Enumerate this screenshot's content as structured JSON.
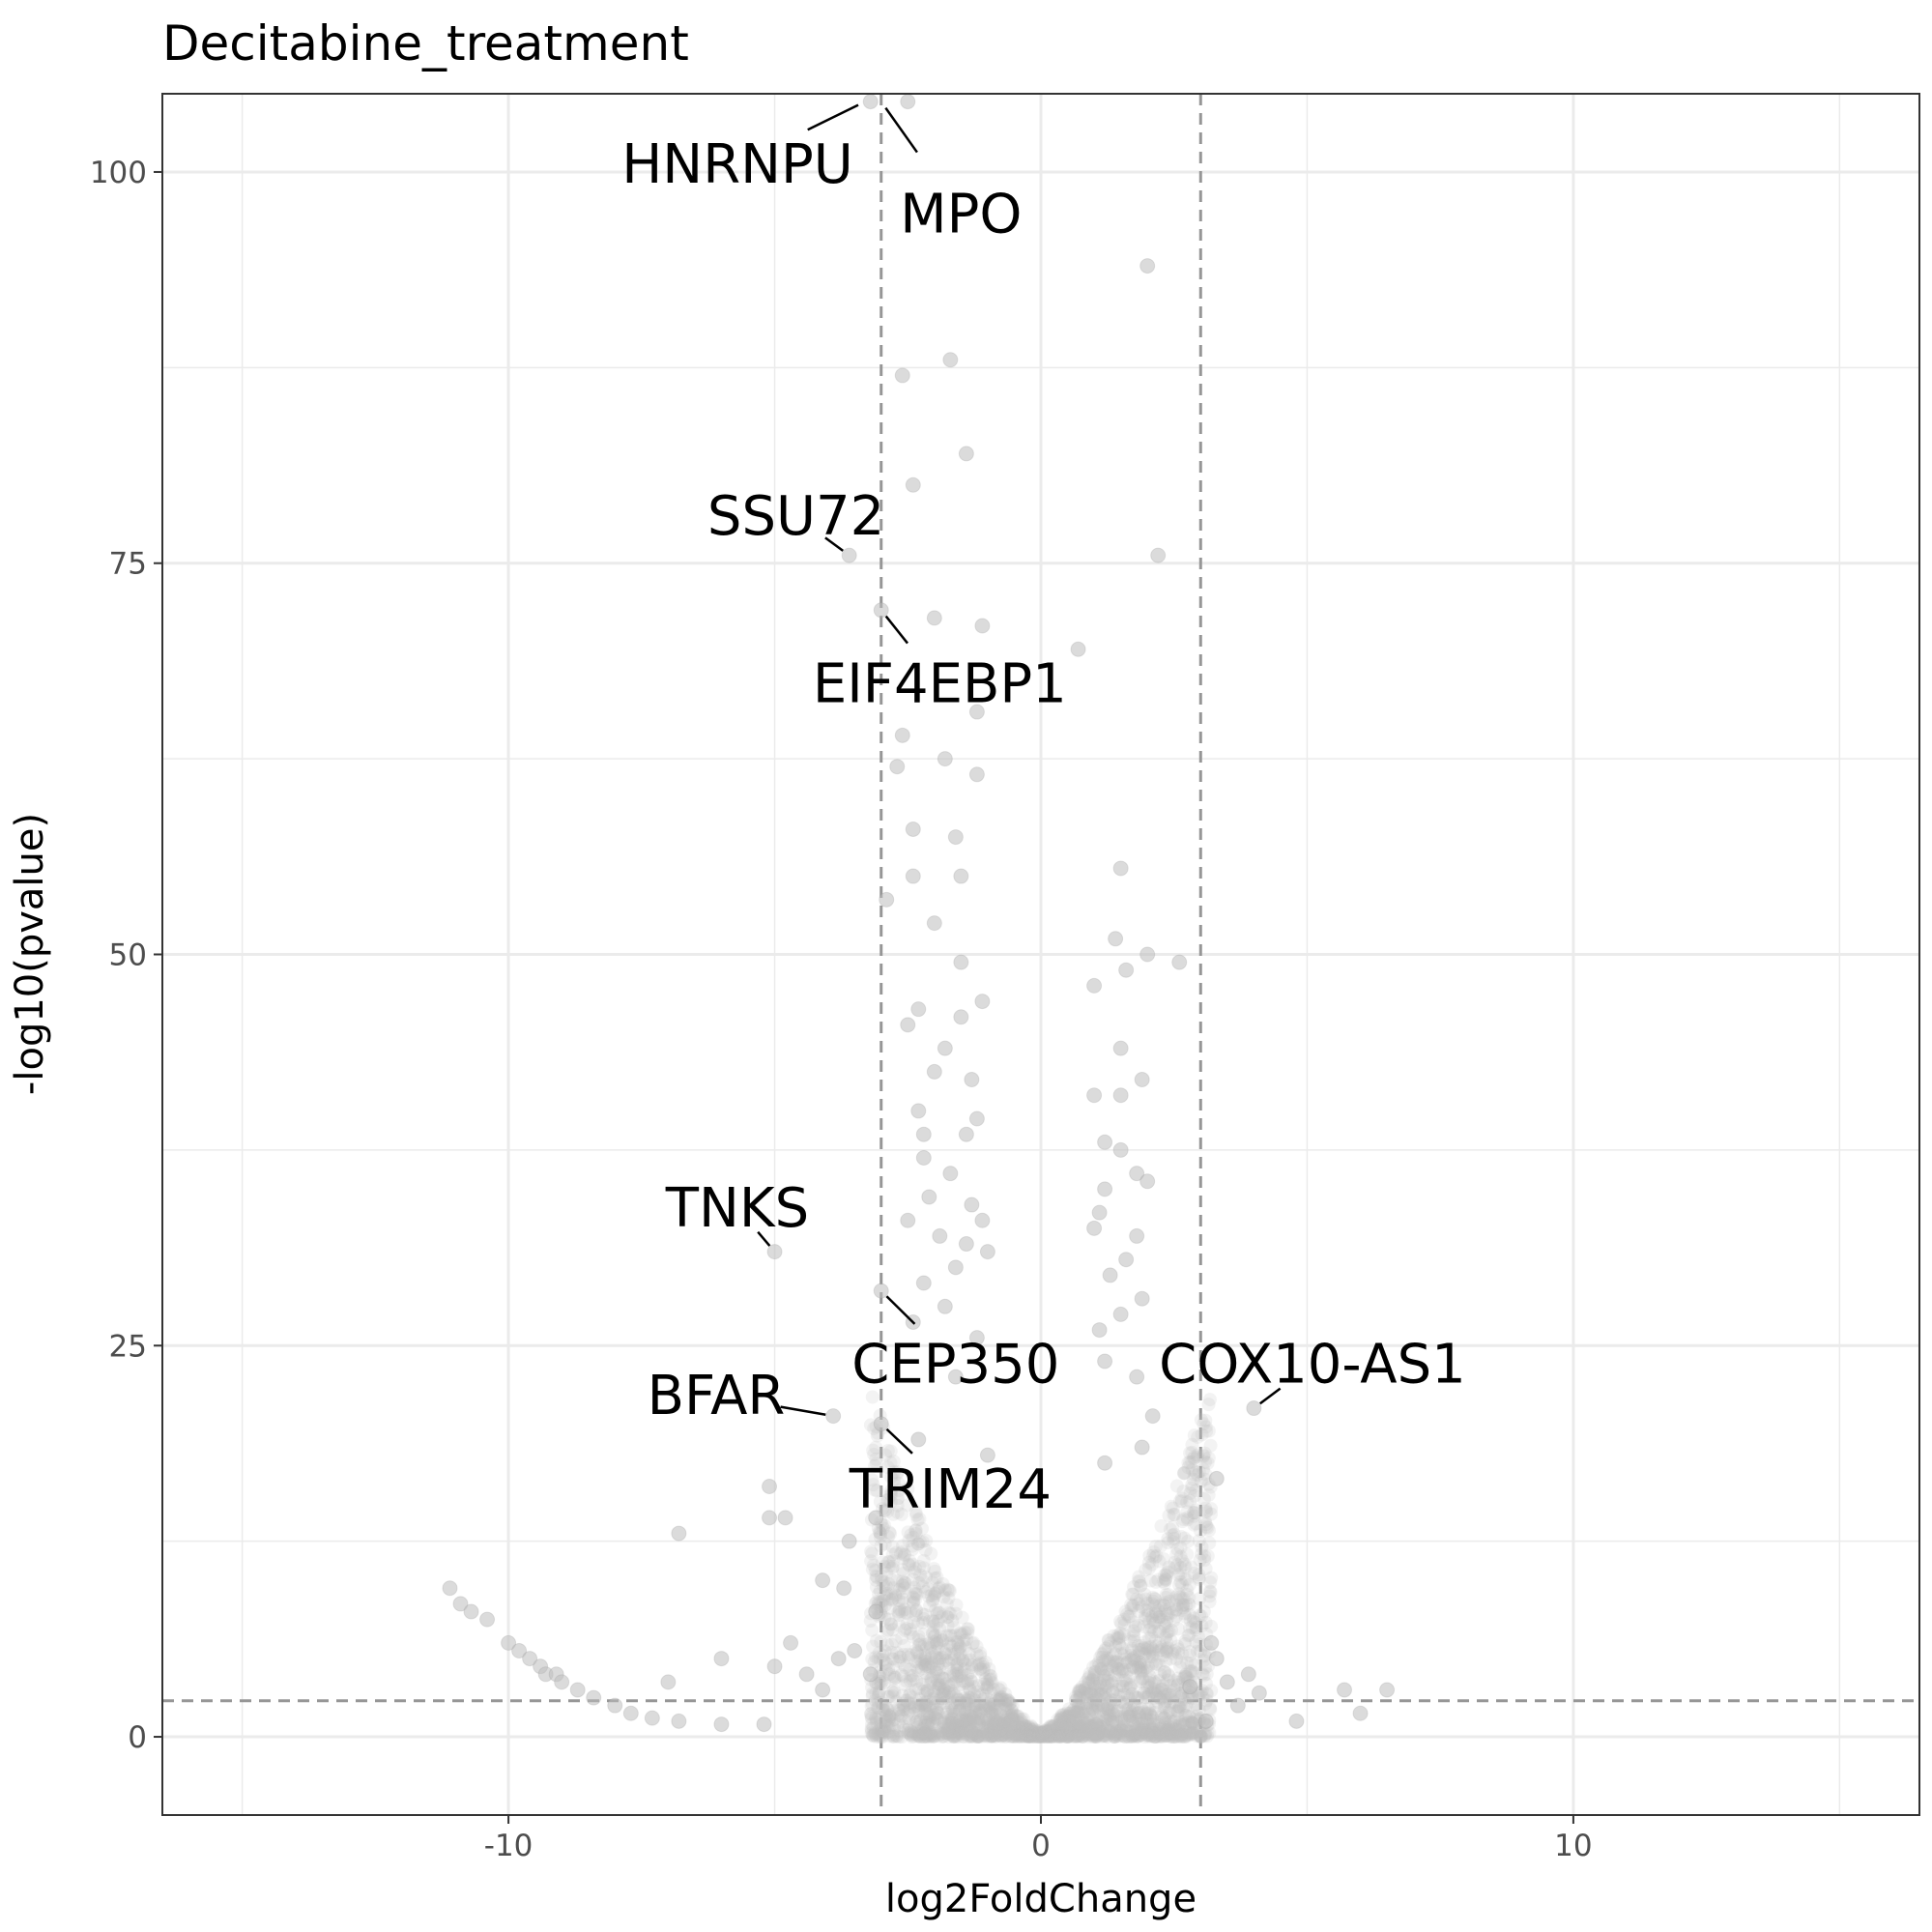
{
  "chart_data": {
    "type": "scatter",
    "title": "Decitabine_treatment",
    "xlabel": "log2FoldChange",
    "ylabel": "-log10(pvalue)",
    "xlim": [
      -16.5,
      16.5
    ],
    "ylim": [
      -5,
      105
    ],
    "x_ticks": [
      {
        "value": -10,
        "label": "-10"
      },
      {
        "value": 0,
        "label": "0"
      },
      {
        "value": 10,
        "label": "10"
      }
    ],
    "y_ticks": [
      {
        "value": 0,
        "label": "0"
      },
      {
        "value": 25,
        "label": "25"
      },
      {
        "value": 50,
        "label": "50"
      },
      {
        "value": 75,
        "label": "75"
      },
      {
        "value": 100,
        "label": "100"
      }
    ],
    "x_minor_gridlines": [
      -15,
      -5,
      5,
      15
    ],
    "y_minor_gridlines": [
      12.5,
      37.5,
      62.5,
      87.5
    ],
    "grid": true,
    "thresholds": {
      "log2FoldChange": [
        -3,
        3
      ],
      "neg_log10_pvalue": 2.3
    },
    "colors": {
      "point": "#bebebe",
      "threshold_line": "#969696",
      "grid": "#ebebeb",
      "border": "#333333",
      "label": "#000000"
    },
    "points": [
      {
        "x": -3.2,
        "y": 104.5
      },
      {
        "x": -2.5,
        "y": 104.5
      },
      {
        "x": 2.0,
        "y": 94
      },
      {
        "x": -1.7,
        "y": 88
      },
      {
        "x": -2.6,
        "y": 87
      },
      {
        "x": -1.4,
        "y": 82
      },
      {
        "x": -2.4,
        "y": 80
      },
      {
        "x": -3.6,
        "y": 75.5
      },
      {
        "x": 2.2,
        "y": 75.5
      },
      {
        "x": -3.0,
        "y": 72
      },
      {
        "x": -2.0,
        "y": 71.5
      },
      {
        "x": -1.1,
        "y": 71
      },
      {
        "x": 0.7,
        "y": 69.5
      },
      {
        "x": -1.2,
        "y": 65.5
      },
      {
        "x": -2.6,
        "y": 64
      },
      {
        "x": -1.8,
        "y": 62.5
      },
      {
        "x": -1.2,
        "y": 61.5
      },
      {
        "x": -2.7,
        "y": 62
      },
      {
        "x": -2.4,
        "y": 58
      },
      {
        "x": -1.6,
        "y": 57.5
      },
      {
        "x": -2.9,
        "y": 53.5
      },
      {
        "x": -2.4,
        "y": 55
      },
      {
        "x": -1.5,
        "y": 55
      },
      {
        "x": 1.5,
        "y": 55.5
      },
      {
        "x": -2.0,
        "y": 52
      },
      {
        "x": 1.4,
        "y": 51
      },
      {
        "x": 1.6,
        "y": 49
      },
      {
        "x": 2.0,
        "y": 50
      },
      {
        "x": 2.6,
        "y": 49.5
      },
      {
        "x": -1.5,
        "y": 49.5
      },
      {
        "x": 1.0,
        "y": 48
      },
      {
        "x": -1.1,
        "y": 47
      },
      {
        "x": -2.3,
        "y": 46.5
      },
      {
        "x": -1.5,
        "y": 46
      },
      {
        "x": -2.5,
        "y": 45.5
      },
      {
        "x": 1.5,
        "y": 44
      },
      {
        "x": -1.8,
        "y": 44
      },
      {
        "x": -2.0,
        "y": 42.5
      },
      {
        "x": 1.9,
        "y": 42
      },
      {
        "x": -1.3,
        "y": 42
      },
      {
        "x": 1.0,
        "y": 41
      },
      {
        "x": 1.5,
        "y": 41
      },
      {
        "x": -2.3,
        "y": 40
      },
      {
        "x": -1.2,
        "y": 39.5
      },
      {
        "x": -2.2,
        "y": 38.5
      },
      {
        "x": -1.4,
        "y": 38.5
      },
      {
        "x": 1.2,
        "y": 38
      },
      {
        "x": 1.5,
        "y": 37.5
      },
      {
        "x": -2.2,
        "y": 37
      },
      {
        "x": -1.7,
        "y": 36
      },
      {
        "x": 1.8,
        "y": 36
      },
      {
        "x": 1.2,
        "y": 35
      },
      {
        "x": 2.0,
        "y": 35.5
      },
      {
        "x": -2.1,
        "y": 34.5
      },
      {
        "x": -1.3,
        "y": 34
      },
      {
        "x": 1.1,
        "y": 33.5
      },
      {
        "x": -2.5,
        "y": 33
      },
      {
        "x": -1.1,
        "y": 33
      },
      {
        "x": 1.0,
        "y": 32.5
      },
      {
        "x": 1.8,
        "y": 32
      },
      {
        "x": -1.9,
        "y": 32
      },
      {
        "x": -1.4,
        "y": 31.5
      },
      {
        "x": -5.0,
        "y": 31
      },
      {
        "x": -1.0,
        "y": 31
      },
      {
        "x": 1.6,
        "y": 30.5
      },
      {
        "x": -1.6,
        "y": 30
      },
      {
        "x": 1.3,
        "y": 29.5
      },
      {
        "x": -2.2,
        "y": 29
      },
      {
        "x": -3.0,
        "y": 28.5
      },
      {
        "x": 1.9,
        "y": 28
      },
      {
        "x": -1.8,
        "y": 27.5
      },
      {
        "x": 1.5,
        "y": 27
      },
      {
        "x": -2.4,
        "y": 26.5
      },
      {
        "x": 1.1,
        "y": 26
      },
      {
        "x": -1.2,
        "y": 25.5
      },
      {
        "x": 1.2,
        "y": 24
      },
      {
        "x": 1.8,
        "y": 23
      },
      {
        "x": -1.6,
        "y": 23
      },
      {
        "x": 4.0,
        "y": 21
      },
      {
        "x": -3.9,
        "y": 20.5
      },
      {
        "x": -3.0,
        "y": 20
      },
      {
        "x": 2.1,
        "y": 20.5
      },
      {
        "x": -2.3,
        "y": 19
      },
      {
        "x": 1.9,
        "y": 18.5
      },
      {
        "x": -1.0,
        "y": 18
      },
      {
        "x": 1.2,
        "y": 17.5
      },
      {
        "x": 3.3,
        "y": 16.5
      },
      {
        "x": -5.1,
        "y": 16
      },
      {
        "x": -5.1,
        "y": 14
      },
      {
        "x": -4.8,
        "y": 14
      },
      {
        "x": -3.1,
        "y": 14
      },
      {
        "x": -3.6,
        "y": 12.5
      },
      {
        "x": -6.8,
        "y": 13
      },
      {
        "x": -4.1,
        "y": 10
      },
      {
        "x": -3.7,
        "y": 9.5
      },
      {
        "x": -3.1,
        "y": 8
      },
      {
        "x": -11.1,
        "y": 9.5
      },
      {
        "x": -10.9,
        "y": 8.5
      },
      {
        "x": -10.7,
        "y": 8
      },
      {
        "x": -10.4,
        "y": 7.5
      },
      {
        "x": -10.0,
        "y": 6
      },
      {
        "x": -9.8,
        "y": 5.5
      },
      {
        "x": -9.6,
        "y": 5
      },
      {
        "x": -9.4,
        "y": 4.5
      },
      {
        "x": -9.3,
        "y": 4
      },
      {
        "x": -9.1,
        "y": 4
      },
      {
        "x": -9.0,
        "y": 3.5
      },
      {
        "x": -8.7,
        "y": 3
      },
      {
        "x": -8.4,
        "y": 2.5
      },
      {
        "x": -8.0,
        "y": 2
      },
      {
        "x": -7.7,
        "y": 1.5
      },
      {
        "x": -7.3,
        "y": 1.2
      },
      {
        "x": -6.8,
        "y": 1
      },
      {
        "x": -6.0,
        "y": 0.8
      },
      {
        "x": -7.0,
        "y": 3.5
      },
      {
        "x": -6.0,
        "y": 5
      },
      {
        "x": -5.0,
        "y": 4.5
      },
      {
        "x": -4.7,
        "y": 6
      },
      {
        "x": -4.4,
        "y": 4
      },
      {
        "x": -4.1,
        "y": 3
      },
      {
        "x": -3.8,
        "y": 5
      },
      {
        "x": -3.5,
        "y": 5.5
      },
      {
        "x": -3.2,
        "y": 4
      },
      {
        "x": -5.2,
        "y": 0.8
      },
      {
        "x": 3.2,
        "y": 6
      },
      {
        "x": 3.3,
        "y": 5
      },
      {
        "x": 3.5,
        "y": 3.5
      },
      {
        "x": 3.9,
        "y": 4
      },
      {
        "x": 4.1,
        "y": 2.8
      },
      {
        "x": 3.7,
        "y": 2
      },
      {
        "x": 4.8,
        "y": 1
      },
      {
        "x": 5.7,
        "y": 3
      },
      {
        "x": 6.5,
        "y": 3
      },
      {
        "x": 6.0,
        "y": 1.5
      },
      {
        "x": 3.1,
        "y": 1
      },
      {
        "x": 2.8,
        "y": 3.2
      }
    ],
    "labels": [
      {
        "gene": "HNRNPU",
        "text_x": -5.7,
        "text_y": 100.5,
        "point_x": -3.3,
        "point_y": 104.5
      },
      {
        "gene": "MPO",
        "text_x": -1.5,
        "text_y": 97.3,
        "point_x": -3.0,
        "point_y": 104.5
      },
      {
        "gene": "SSU72",
        "text_x": -4.6,
        "text_y": 78,
        "point_x": -3.6,
        "point_y": 75.5
      },
      {
        "gene": "EIF4EBP1",
        "text_x": -1.9,
        "text_y": 67.3,
        "point_x": -3.0,
        "point_y": 72
      },
      {
        "gene": "TNKS",
        "text_x": -5.7,
        "text_y": 33.8,
        "point_x": -5.0,
        "point_y": 31
      },
      {
        "gene": "CEP350",
        "text_x": -1.6,
        "text_y": 23.8,
        "point_x": -3.0,
        "point_y": 28.5
      },
      {
        "gene": "COX10-AS1",
        "text_x": 5.1,
        "text_y": 23.8,
        "point_x": 4.0,
        "point_y": 21
      },
      {
        "gene": "BFAR",
        "text_x": -6.1,
        "text_y": 21.8,
        "point_x": -3.9,
        "point_y": 20.5
      },
      {
        "gene": "TRIM24",
        "text_x": -1.7,
        "text_y": 15.8,
        "point_x": -3.0,
        "point_y": 20
      }
    ]
  }
}
